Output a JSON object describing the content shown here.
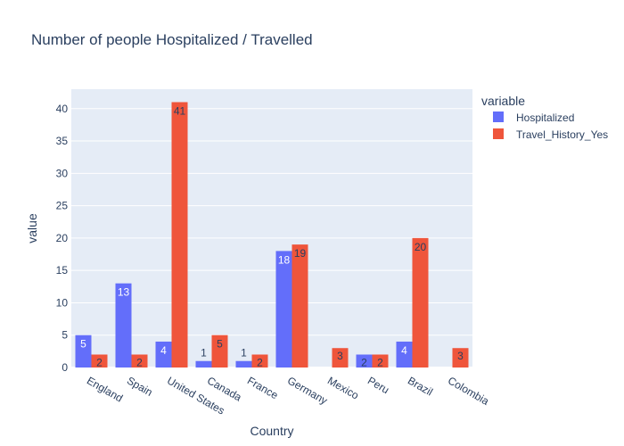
{
  "chart_data": {
    "type": "bar",
    "title": "Number of people Hospitalized / Travelled",
    "xlabel": "Country",
    "ylabel": "value",
    "ylim": [
      0,
      43
    ],
    "yticks": [
      0,
      5,
      10,
      15,
      20,
      25,
      30,
      35,
      40
    ],
    "grid": true,
    "legend_title": "variable",
    "legend_position": "top-right",
    "categories": [
      "England",
      "Spain",
      "United States",
      "Canada",
      "France",
      "Germany",
      "Mexico",
      "Peru",
      "Brazil",
      "Colombia"
    ],
    "series": [
      {
        "name": "Hospitalized",
        "color": "#636efa",
        "values": [
          5,
          13,
          4,
          1,
          1,
          18,
          0,
          2,
          4,
          0
        ],
        "labels": [
          "5",
          "13",
          "4",
          "1",
          "1",
          "18",
          "",
          "2",
          "4",
          ""
        ]
      },
      {
        "name": "Travel_History_Yes",
        "color": "#ef553b",
        "values": [
          2,
          2,
          41,
          5,
          2,
          19,
          3,
          2,
          20,
          3
        ],
        "labels": [
          "2",
          "2",
          "41",
          "5",
          "2",
          "19",
          "3",
          "2",
          "20",
          "3"
        ]
      }
    ]
  }
}
